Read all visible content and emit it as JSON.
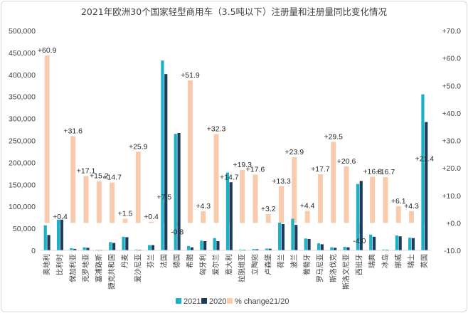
{
  "chart_data": {
    "type": "bar",
    "title": "2021年欧洲30个国家轻型商用车（3.5吨以下）注册量和注册量同比变化情况",
    "categories": [
      "奥地利",
      "比利时",
      "保加利亚",
      "克罗地亚",
      "塞浦路斯",
      "捷克共和国",
      "丹麦",
      "爱沙尼亚",
      "芬兰",
      "法国",
      "德国",
      "希腊",
      "匈牙利",
      "爱尔兰",
      "意大利",
      "拉脱维亚",
      "立陶宛",
      "卢森堡",
      "荷兰",
      "波兰",
      "葡萄牙",
      "罗马尼亚",
      "斯洛伐克",
      "斯洛文尼亚",
      "西班牙",
      "瑞典",
      "冰岛",
      "挪威",
      "瑞士",
      "英国"
    ],
    "series": [
      {
        "name": "2021",
        "axis": "left",
        "color": "#1ab2c8",
        "values": [
          57000,
          70000,
          5000,
          7000,
          1500,
          19000,
          31000,
          2000,
          12000,
          432000,
          265000,
          10000,
          22000,
          28000,
          177000,
          2000,
          3000,
          4000,
          63000,
          72000,
          27000,
          16000,
          7000,
          8000,
          151000,
          36000,
          2000,
          34000,
          29000,
          355000
        ]
      },
      {
        "name": "2020",
        "axis": "left",
        "color": "#1f3b5a",
        "values": [
          35000,
          70000,
          3500,
          6000,
          1300,
          17000,
          30000,
          1500,
          12000,
          401000,
          267000,
          7000,
          21000,
          21000,
          155000,
          1600,
          2600,
          3800,
          60000,
          58000,
          26000,
          14000,
          6000,
          7000,
          158000,
          31000,
          1700,
          32000,
          28000,
          292000
        ]
      },
      {
        "name": "% change21/20",
        "axis": "right",
        "color": "#f8cbad",
        "values": [
          60.9,
          0.4,
          31.6,
          17.1,
          15.2,
          14.7,
          1.5,
          25.9,
          0.4,
          7.5,
          -0.8,
          51.9,
          4.3,
          32.3,
          14.7,
          19.3,
          17.6,
          3.2,
          13.3,
          23.9,
          4.4,
          17.7,
          29.5,
          20.6,
          -4.0,
          16.8,
          16.7,
          6.1,
          4.3,
          21.4
        ]
      }
    ],
    "data_labels": [
      "+60.9",
      "+0.4",
      "+31.6",
      "+17.1",
      "+15.2",
      "+14.7",
      "+1.5",
      "+25.9",
      "+0.4",
      "+7.5",
      "-0.8",
      "+51.9",
      "+4.3",
      "+32.3",
      "+14.7",
      "+19.3",
      "+17.6",
      "+3.2",
      "+13.3",
      "+23.9",
      "+4.4",
      "+17.7",
      "+29.5",
      "+20.6",
      "-4.0",
      "+16.8",
      "+16.7",
      "+6.1",
      "+4.3",
      "+21.4"
    ],
    "y_left": {
      "min": 0,
      "max": 500000,
      "step": 50000,
      "tick_labels": [
        "0",
        "50,000",
        "100,000",
        "150,000",
        "200,000",
        "250,000",
        "300,000",
        "350,000",
        "400,000",
        "450,000",
        "500,000"
      ]
    },
    "y_right": {
      "min": -10,
      "max": 70,
      "step": 10,
      "tick_labels": [
        "-10.0",
        "+0.0",
        "+10.0",
        "+20.0",
        "+30.0",
        "+40.0",
        "+50.0",
        "+60.0",
        "+70.0"
      ]
    },
    "grid": false,
    "legend_position": "bottom"
  }
}
